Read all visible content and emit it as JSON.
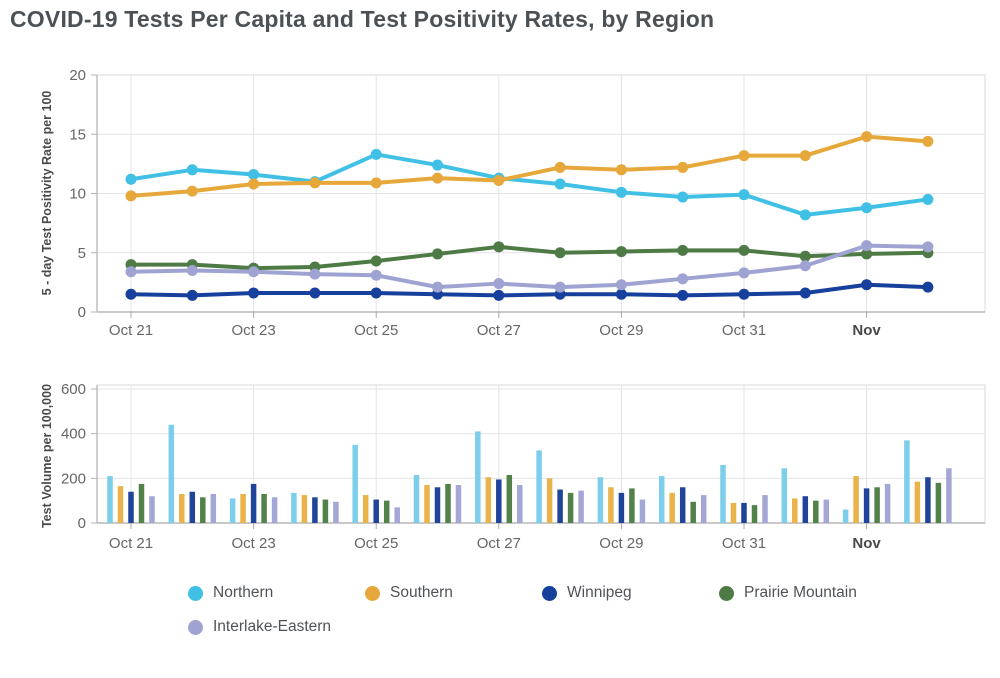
{
  "page": {
    "title": "COVID-19 Tests Per Capita and Test Positivity Rates, by Region"
  },
  "colors": {
    "northern": "#41C0E5",
    "northern_bar": "#7CCEEA",
    "southern": "#E7A83B",
    "southern_bar": "#EAB349",
    "winnipeg": "#17409C",
    "winnipeg_bar": "#1F4499",
    "prairie_mountain": "#4E7B45",
    "prairie_mountain_bar": "#53814A",
    "interlake_eastern": "#9FA3D1",
    "interlake_eastern_bar": "#A4A7D6",
    "axis_text": "#666666",
    "grid_line": "#E4E4E4",
    "title_text": "#4C5156"
  },
  "legend": {
    "items": [
      {
        "label": "Northern",
        "color": "#41C0E5"
      },
      {
        "label": "Southern",
        "color": "#E7A83B"
      },
      {
        "label": "Winnipeg",
        "color": "#17409C"
      },
      {
        "label": "Prairie Mountain",
        "color": "#4E7B45"
      },
      {
        "label": "Interlake-Eastern",
        "color": "#9FA3D1"
      }
    ]
  },
  "chart_data": [
    {
      "type": "line",
      "title": "",
      "xlabel": "",
      "ylabel": "5 - day Test Positivity Rate per 100",
      "x": [
        "Oct 21",
        "Oct 22",
        "Oct 23",
        "Oct 24",
        "Oct 25",
        "Oct 26",
        "Oct 27",
        "Oct 28",
        "Oct 29",
        "Oct 30",
        "Oct 31",
        "Nov 1",
        "Nov 2",
        "Nov 3"
      ],
      "x_tick_labels": [
        "Oct 21",
        "Oct 23",
        "Oct 25",
        "Oct 27",
        "Oct 29",
        "Oct 31",
        "Nov"
      ],
      "x_tick_indices": [
        0,
        2,
        4,
        6,
        8,
        10,
        12
      ],
      "ylim": [
        0,
        20
      ],
      "yticks": [
        0,
        5,
        10,
        15,
        20
      ],
      "grid": true,
      "legend_position": "bottom",
      "series": [
        {
          "name": "Northern",
          "color": "#41C0E5",
          "values": [
            11.2,
            12.0,
            11.6,
            11.0,
            13.3,
            12.4,
            11.3,
            10.8,
            10.1,
            9.7,
            9.9,
            8.2,
            8.8,
            9.5
          ]
        },
        {
          "name": "Southern",
          "color": "#E7A83B",
          "values": [
            9.8,
            10.2,
            10.8,
            10.9,
            10.9,
            11.3,
            11.1,
            12.2,
            12.0,
            12.2,
            13.2,
            13.2,
            14.8,
            14.4
          ]
        },
        {
          "name": "Winnipeg",
          "color": "#17409C",
          "values": [
            1.5,
            1.4,
            1.6,
            1.6,
            1.6,
            1.5,
            1.4,
            1.5,
            1.5,
            1.4,
            1.5,
            1.6,
            2.3,
            2.1
          ]
        },
        {
          "name": "Prairie Mountain",
          "color": "#4E7B45",
          "values": [
            4.0,
            4.0,
            3.7,
            3.8,
            4.3,
            4.9,
            5.5,
            5.0,
            5.1,
            5.2,
            5.2,
            4.7,
            4.9,
            5.0
          ]
        },
        {
          "name": "Interlake-Eastern",
          "color": "#9FA3D1",
          "values": [
            3.4,
            3.5,
            3.4,
            3.2,
            3.1,
            2.1,
            2.4,
            2.1,
            2.3,
            2.8,
            3.3,
            3.9,
            5.6,
            5.5
          ]
        }
      ]
    },
    {
      "type": "bar",
      "title": "",
      "xlabel": "",
      "ylabel": "Test Volume per 100,000",
      "x": [
        "Oct 21",
        "Oct 22",
        "Oct 23",
        "Oct 24",
        "Oct 25",
        "Oct 26",
        "Oct 27",
        "Oct 28",
        "Oct 29",
        "Oct 30",
        "Oct 31",
        "Nov 1",
        "Nov 2",
        "Nov 3"
      ],
      "x_tick_labels": [
        "Oct 21",
        "Oct 23",
        "Oct 25",
        "Oct 27",
        "Oct 29",
        "Oct 31",
        "Nov"
      ],
      "x_tick_indices": [
        0,
        2,
        4,
        6,
        8,
        10,
        12
      ],
      "ylim": [
        0,
        600
      ],
      "yticks": [
        0,
        200,
        400,
        600
      ],
      "grid": true,
      "legend_position": "bottom",
      "series": [
        {
          "name": "Northern",
          "color": "#7CCEEA",
          "values": [
            210,
            440,
            110,
            135,
            350,
            215,
            410,
            325,
            205,
            210,
            260,
            245,
            60,
            370
          ]
        },
        {
          "name": "Southern",
          "color": "#EAB349",
          "values": [
            165,
            130,
            130,
            125,
            125,
            170,
            205,
            200,
            160,
            135,
            90,
            110,
            210,
            185
          ]
        },
        {
          "name": "Winnipeg",
          "color": "#1F4499",
          "values": [
            140,
            140,
            175,
            115,
            105,
            160,
            195,
            150,
            135,
            160,
            90,
            120,
            155,
            205
          ]
        },
        {
          "name": "Prairie Mountain",
          "color": "#53814A",
          "values": [
            175,
            115,
            130,
            105,
            100,
            175,
            215,
            135,
            155,
            95,
            80,
            100,
            160,
            180
          ]
        },
        {
          "name": "Interlake-Eastern",
          "color": "#A4A7D6",
          "values": [
            120,
            130,
            115,
            95,
            70,
            170,
            170,
            145,
            105,
            125,
            125,
            105,
            175,
            245
          ]
        }
      ]
    }
  ]
}
